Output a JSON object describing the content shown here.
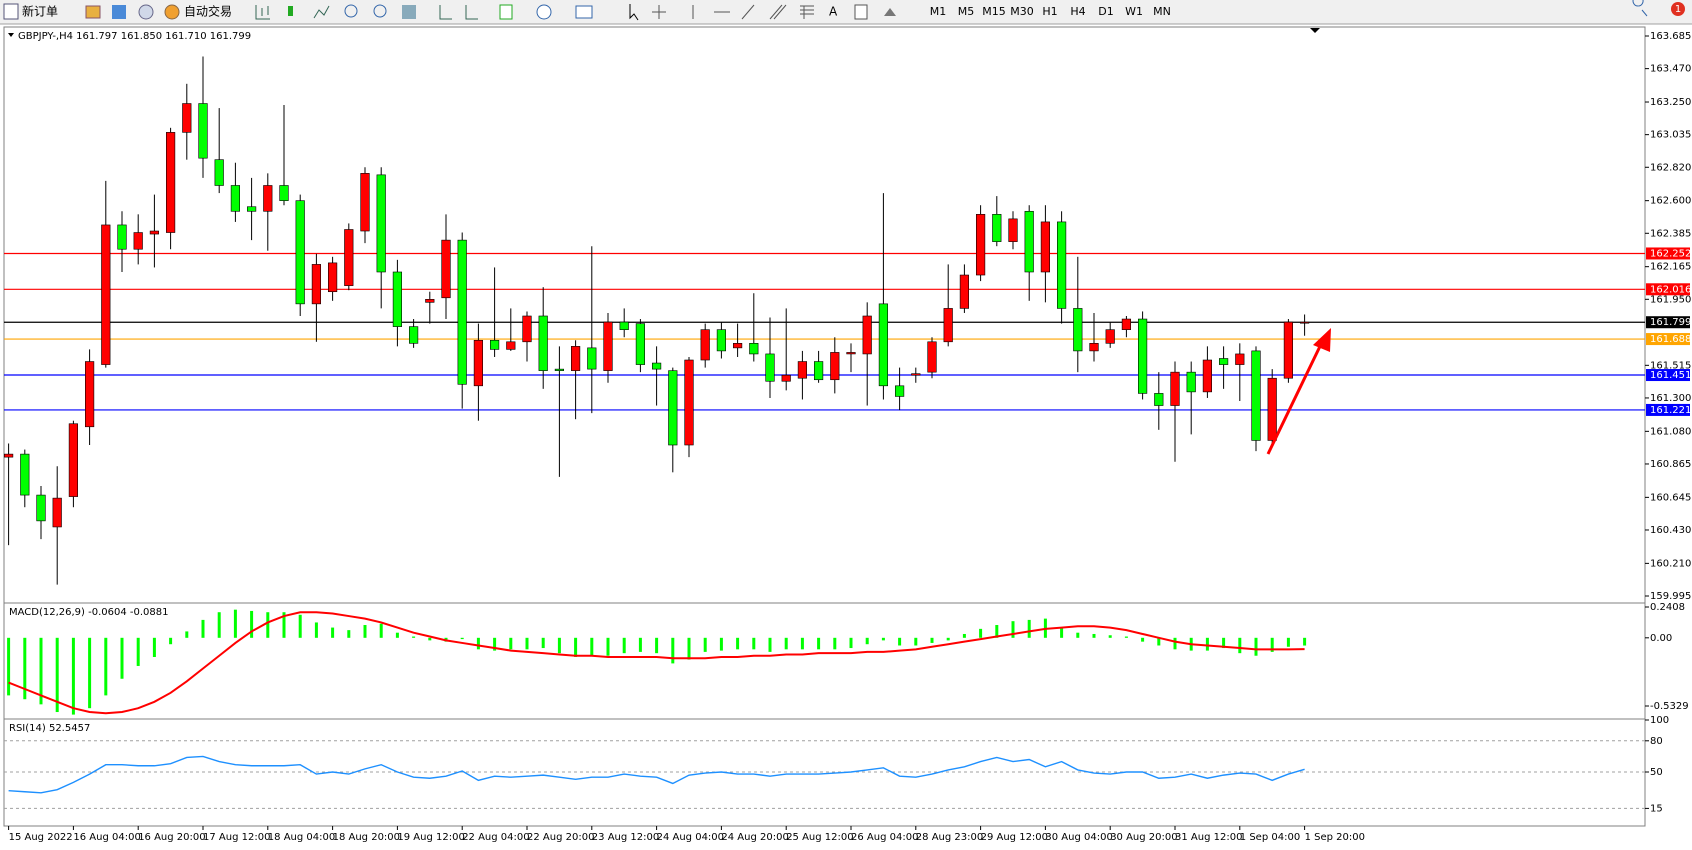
{
  "toolbar": {
    "new_order": "新订单",
    "auto_trading": "自动交易",
    "timeframes": [
      "M1",
      "M5",
      "M15",
      "M30",
      "H1",
      "H4",
      "D1",
      "W1",
      "MN"
    ],
    "notifications": 1
  },
  "chart_data": [
    {
      "type": "candlestick",
      "legend": "GBPJPY-,H4  161.797 161.850 161.710 161.799",
      "up_color": "#ff0000",
      "down_color": "#00ff00",
      "categories": [
        "15 Aug 2022",
        null,
        null,
        null,
        "16 Aug 04:00",
        null,
        null,
        null,
        "16 Aug 20:00",
        null,
        null,
        null,
        "17 Aug 12:00",
        null,
        null,
        null,
        "18 Aug 04:00",
        null,
        null,
        null,
        "18 Aug 20:00",
        null,
        null,
        null,
        "19 Aug 12:00",
        null,
        null,
        null,
        "22 Aug 04:00",
        null,
        null,
        null,
        "22 Aug 20:00",
        null,
        null,
        null,
        "23 Aug 12:00",
        null,
        null,
        null,
        "24 Aug 04:00",
        null,
        null,
        null,
        "24 Aug 20:00",
        null,
        null,
        null,
        "25 Aug 12:00",
        null,
        null,
        null,
        "26 Aug 04:00",
        null,
        null,
        null,
        "28 Aug 23:00",
        null,
        null,
        null,
        "29 Aug 12:00",
        null,
        null,
        null,
        "30 Aug 04:00",
        null,
        null,
        null,
        "30 Aug 20:00",
        null,
        null,
        null,
        "31 Aug 12:00",
        null,
        null,
        null,
        "1 Sep 04:00",
        null,
        null,
        null,
        "1 Sep 20:00"
      ],
      "open": [
        160.91,
        160.93,
        160.66,
        160.45,
        160.65,
        161.11,
        161.52,
        162.44,
        162.28,
        162.38,
        162.39,
        163.05,
        163.24,
        162.87,
        162.7,
        162.56,
        162.53,
        162.7,
        162.6,
        161.92,
        162.0,
        162.04,
        162.4,
        162.77,
        162.13,
        161.77,
        161.93,
        161.96,
        162.34,
        161.38,
        161.68,
        161.62,
        161.67,
        161.84,
        161.49,
        161.48,
        161.63,
        161.48,
        161.8,
        161.79,
        161.53,
        161.48,
        160.99,
        161.55,
        161.75,
        161.63,
        161.66,
        161.59,
        161.41,
        161.43,
        161.54,
        161.42,
        161.59,
        161.59,
        161.92,
        161.38,
        161.45,
        161.47,
        161.67,
        161.89,
        162.11,
        162.51,
        162.33,
        162.53,
        162.13,
        162.46,
        161.89,
        161.61,
        161.66,
        161.75,
        161.82,
        161.33,
        161.25,
        161.47,
        161.34,
        161.56,
        161.52,
        161.61,
        161.02,
        161.43,
        161.797
      ],
      "high": [
        161.0,
        160.96,
        160.72,
        160.85,
        161.15,
        161.62,
        162.73,
        162.53,
        162.51,
        162.64,
        163.08,
        163.37,
        163.55,
        163.21,
        162.85,
        162.75,
        162.78,
        163.23,
        162.64,
        162.25,
        162.23,
        162.45,
        162.82,
        162.82,
        162.21,
        161.82,
        162.0,
        162.51,
        162.39,
        161.79,
        162.16,
        161.89,
        161.87,
        162.03,
        161.64,
        161.68,
        162.3,
        161.86,
        161.89,
        161.82,
        161.64,
        161.5,
        161.57,
        161.79,
        161.8,
        161.79,
        161.99,
        161.83,
        161.89,
        161.61,
        161.61,
        161.7,
        161.66,
        161.93,
        162.65,
        161.5,
        161.5,
        161.7,
        162.18,
        162.18,
        162.57,
        162.63,
        162.53,
        162.57,
        162.57,
        162.53,
        162.23,
        161.86,
        161.8,
        161.84,
        161.87,
        161.47,
        161.54,
        161.54,
        161.64,
        161.64,
        161.66,
        161.64,
        161.49,
        161.82,
        161.85
      ],
      "low": [
        160.33,
        160.58,
        160.37,
        160.07,
        160.58,
        160.99,
        161.5,
        162.13,
        162.18,
        162.16,
        162.28,
        162.87,
        162.75,
        162.65,
        162.46,
        162.34,
        162.27,
        162.57,
        161.84,
        161.67,
        161.94,
        162.01,
        162.32,
        161.89,
        161.64,
        161.63,
        161.79,
        161.82,
        161.23,
        161.15,
        161.57,
        161.61,
        161.54,
        161.36,
        160.78,
        161.16,
        161.2,
        161.4,
        161.7,
        161.47,
        161.25,
        160.81,
        160.91,
        161.5,
        161.56,
        161.57,
        161.54,
        161.3,
        161.35,
        161.29,
        161.4,
        161.33,
        161.47,
        161.25,
        161.29,
        161.22,
        161.4,
        161.43,
        161.64,
        161.86,
        162.07,
        162.3,
        162.28,
        161.94,
        161.93,
        161.79,
        161.47,
        161.54,
        161.63,
        161.7,
        161.29,
        161.09,
        160.88,
        161.06,
        161.3,
        161.36,
        161.28,
        160.95,
        160.99,
        161.4,
        161.71
      ],
      "close": [
        160.93,
        160.66,
        160.49,
        160.64,
        161.13,
        161.54,
        162.44,
        162.28,
        162.39,
        162.4,
        163.05,
        163.24,
        162.88,
        162.7,
        162.53,
        162.53,
        162.7,
        162.6,
        161.92,
        162.18,
        162.19,
        162.41,
        162.78,
        162.13,
        161.77,
        161.66,
        161.95,
        162.34,
        161.39,
        161.68,
        161.62,
        161.67,
        161.84,
        161.48,
        161.48,
        161.64,
        161.49,
        161.8,
        161.75,
        161.52,
        161.49,
        160.99,
        161.55,
        161.75,
        161.61,
        161.66,
        161.59,
        161.41,
        161.45,
        161.54,
        161.42,
        161.6,
        161.6,
        161.84,
        161.38,
        161.31,
        161.46,
        161.67,
        161.89,
        162.11,
        162.51,
        162.33,
        162.48,
        162.13,
        162.46,
        161.89,
        161.61,
        161.66,
        161.75,
        161.82,
        161.33,
        161.25,
        161.47,
        161.34,
        161.55,
        161.52,
        161.59,
        161.02,
        161.43,
        161.8,
        161.799
      ],
      "ylim": [
        159.995,
        163.685
      ],
      "yticks": [
        163.685,
        {
          "value": 163.47,
          "label": "163.470"
        },
        {
          "value": 163.25,
          "label": "163.250"
        },
        163.035,
        {
          "value": 162.82,
          "label": "162.820"
        },
        {
          "value": 162.6,
          "label": "162.600"
        },
        162.385,
        162.165,
        {
          "value": 161.95,
          "label": "161.950"
        },
        161.515,
        {
          "value": 161.3,
          "label": "161.300"
        },
        {
          "value": 161.08,
          "label": "161.080"
        },
        160.865,
        160.645,
        {
          "value": 160.43,
          "label": "160.430"
        },
        {
          "value": 160.21,
          "label": "160.210"
        },
        159.995
      ],
      "hlines": [
        {
          "value": 162.252,
          "color": "#ff0000"
        },
        {
          "value": 162.016,
          "color": "#ff0000"
        },
        {
          "value": 161.799,
          "color": "#000000"
        },
        {
          "value": 161.688,
          "color": "#ffa500"
        },
        {
          "value": 161.451,
          "color": "#0000ff"
        },
        {
          "value": 161.221,
          "color": "#0000ff"
        }
      ]
    },
    {
      "type": "macd",
      "legend": "MACD(12,26,9) -0.0604 -0.0881",
      "ylim": [
        -0.5329,
        0.2408
      ],
      "yticks": [
        0.2408,
        {
          "value": 0,
          "label": "0.00"
        },
        -0.5329
      ],
      "histogram": {
        "color": "#00ff00",
        "values": [
          -0.45,
          -0.48,
          -0.52,
          -0.58,
          -0.6,
          -0.55,
          -0.45,
          -0.32,
          -0.22,
          -0.15,
          -0.05,
          0.05,
          0.14,
          0.2,
          0.22,
          0.21,
          0.2,
          0.2,
          0.18,
          0.12,
          0.08,
          0.06,
          0.1,
          0.11,
          0.04,
          0.01,
          -0.02,
          -0.03,
          -0.01,
          -0.09,
          -0.1,
          -0.09,
          -0.09,
          -0.08,
          -0.12,
          -0.15,
          -0.14,
          -0.14,
          -0.12,
          -0.11,
          -0.12,
          -0.2,
          -0.17,
          -0.11,
          -0.1,
          -0.09,
          -0.09,
          -0.11,
          -0.09,
          -0.09,
          -0.09,
          -0.09,
          -0.08,
          -0.05,
          -0.02,
          -0.06,
          -0.06,
          -0.04,
          -0.02,
          0.03,
          0.07,
          0.1,
          0.13,
          0.14,
          0.15,
          0.08,
          0.04,
          0.03,
          0.02,
          0.01,
          -0.03,
          -0.06,
          -0.09,
          -0.1,
          -0.1,
          -0.08,
          -0.12,
          -0.14,
          -0.11,
          -0.07,
          -0.0604
        ]
      },
      "signal": {
        "color": "#ff0000",
        "values": [
          -0.35,
          -0.4,
          -0.45,
          -0.5,
          -0.55,
          -0.58,
          -0.59,
          -0.58,
          -0.55,
          -0.5,
          -0.43,
          -0.34,
          -0.24,
          -0.14,
          -0.04,
          0.05,
          0.12,
          0.17,
          0.2,
          0.2,
          0.19,
          0.17,
          0.15,
          0.12,
          0.08,
          0.04,
          0.01,
          -0.02,
          -0.04,
          -0.06,
          -0.08,
          -0.1,
          -0.11,
          -0.12,
          -0.13,
          -0.14,
          -0.14,
          -0.15,
          -0.15,
          -0.15,
          -0.15,
          -0.16,
          -0.16,
          -0.16,
          -0.15,
          -0.15,
          -0.14,
          -0.14,
          -0.13,
          -0.13,
          -0.12,
          -0.12,
          -0.12,
          -0.11,
          -0.11,
          -0.1,
          -0.09,
          -0.07,
          -0.05,
          -0.03,
          -0.01,
          0.01,
          0.03,
          0.05,
          0.07,
          0.08,
          0.09,
          0.09,
          0.08,
          0.06,
          0.03,
          0.0,
          -0.03,
          -0.05,
          -0.06,
          -0.07,
          -0.08,
          -0.09,
          -0.09,
          -0.09,
          -0.0881
        ]
      }
    },
    {
      "type": "line",
      "legend": "RSI(14) 52.5457",
      "color": "#1e90ff",
      "ylim": [
        0,
        100
      ],
      "yticks": [
        15,
        50,
        80,
        100
      ],
      "values": [
        32,
        31,
        30,
        33,
        40,
        48,
        57,
        57,
        56,
        56,
        58,
        64,
        65,
        60,
        57,
        56,
        56,
        56,
        57,
        48,
        50,
        48,
        53,
        57,
        50,
        45,
        44,
        46,
        51,
        42,
        46,
        45,
        46,
        47,
        45,
        43,
        45,
        45,
        48,
        46,
        45,
        39,
        47,
        49,
        50,
        48,
        48,
        46,
        48,
        48,
        48,
        49,
        50,
        52,
        54,
        46,
        45,
        48,
        52,
        55,
        60,
        64,
        60,
        62,
        55,
        60,
        52,
        49,
        48,
        50,
        50,
        44,
        45,
        48,
        44,
        47,
        49,
        48,
        42,
        48,
        52.5457
      ]
    }
  ]
}
